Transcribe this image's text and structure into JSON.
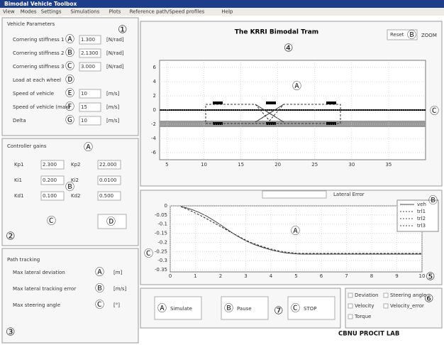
{
  "window": {
    "title": "Bimodal Vehicle Toolbox"
  },
  "menu": [
    "View",
    "Modes",
    "Settings",
    "Simulations",
    "Plots",
    "Reference path/Speed profiles",
    "Help"
  ],
  "vehicle_panel": {
    "number": "①",
    "title": "Vehicle Parameters",
    "rows": [
      {
        "marker": "Ⓐ",
        "label": "Cornering stiffness 1",
        "value": "1.300",
        "unit": "[N/rad]"
      },
      {
        "marker": "Ⓑ",
        "label": "Cornering stiffness 2",
        "value": "2.1300",
        "unit": "[N/rad]"
      },
      {
        "marker": "Ⓒ",
        "label": "Cornering stiffness 3",
        "value": "3.000",
        "unit": "[N/rad]"
      },
      {
        "marker": "Ⓓ",
        "label": "Load at each wheel"
      },
      {
        "marker": "Ⓔ",
        "label": "Speed of vehicle",
        "value": "10",
        "unit": "[m/s]"
      },
      {
        "marker": "Ⓕ",
        "label": "Speed of vehicle (max)",
        "value": "15",
        "unit": "[m/s]"
      },
      {
        "marker": "Ⓖ",
        "label": "Delta",
        "value": "10",
        "unit": "[m/s]"
      }
    ]
  },
  "controller_panel": {
    "number": "②",
    "title": "Controller gains",
    "markers": [
      "Ⓐ",
      "Ⓑ",
      "Ⓒ",
      "Ⓓ"
    ],
    "grid": [
      [
        "Kp1",
        "2.300",
        "Kp2",
        "22.000"
      ],
      [
        "Ki1",
        "0.200",
        "Ki2",
        "0.0100"
      ],
      [
        "Kd1",
        "0.100",
        "Kd2",
        "0.500"
      ]
    ]
  },
  "tracking_panel": {
    "number": "③",
    "title": "Path tracking",
    "rows": [
      {
        "marker": "Ⓐ",
        "label": "Max lateral deviation",
        "unit": "[m]"
      },
      {
        "marker": "Ⓑ",
        "label": "Max lateral tracking error",
        "unit": "[m/s]"
      },
      {
        "marker": "Ⓒ",
        "label": "Max steering angle",
        "unit": "[°]"
      }
    ]
  },
  "plot_panel": {
    "number": "④",
    "title": "The KRRI Bimodal Tram",
    "button": "Reset",
    "zoom": "ZOOM",
    "markers": [
      "Ⓐ",
      "Ⓑ",
      "Ⓒ"
    ],
    "xticks": [
      "5",
      "10",
      "15",
      "20",
      "25",
      "30",
      "35"
    ],
    "yticks": [
      "6",
      "4",
      "2",
      "0",
      "-2",
      "-4",
      "-6"
    ]
  },
  "error_panel": {
    "number": "⑤",
    "title": "Lateral Error",
    "markers": [
      "Ⓐ",
      "Ⓑ",
      "Ⓒ"
    ],
    "xticks": [
      "0",
      "1",
      "2",
      "3",
      "4",
      "5",
      "6",
      "7",
      "8",
      "9",
      "10"
    ],
    "yticks": [
      "0",
      "-0.05",
      "-0.1",
      "-0.15",
      "-0.2",
      "-0.25",
      "-0.3",
      "-0.35"
    ],
    "legend": [
      "veh",
      "trl1",
      "trl2",
      "trl3"
    ]
  },
  "control_panel": {
    "number": "⑦",
    "buttons": [
      {
        "marker": "Ⓐ",
        "label": "Simulate"
      },
      {
        "marker": "Ⓑ",
        "label": "Pause"
      },
      {
        "marker": "Ⓒ",
        "label": "STOP"
      }
    ]
  },
  "options_panel": {
    "number": "⑥",
    "checkboxes": [
      "Deviation",
      "Steering angle",
      "Velocity",
      "Velocity_error",
      "Torque"
    ]
  },
  "footer": "CBNU PROCIT LAB"
}
